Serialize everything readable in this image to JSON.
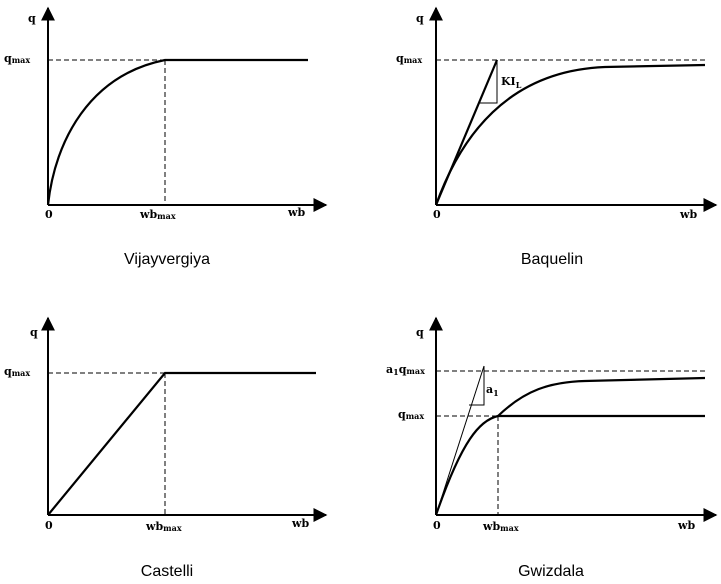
{
  "panels": [
    {
      "id": "vijayvergiya",
      "caption": "Vijayvergiya",
      "y_axis": "q",
      "x_axis": "wb",
      "origin": "0",
      "qmax": {
        "base": "q",
        "sub": "max"
      },
      "wbmax": {
        "base": "wb",
        "sub": "max"
      }
    },
    {
      "id": "baquelin",
      "caption": "Baquelin",
      "y_axis": "q",
      "x_axis": "wb",
      "origin": "0",
      "qmax": {
        "base": "q",
        "sub": "max"
      },
      "slope": {
        "base": "KI",
        "sub": "L"
      }
    },
    {
      "id": "castelli",
      "caption": "Castelli",
      "y_axis": "q",
      "x_axis": "wb",
      "origin": "0",
      "qmax": {
        "base": "q",
        "sub": "max"
      },
      "wbmax": {
        "base": "wb",
        "sub": "max"
      }
    },
    {
      "id": "gwizdala",
      "caption": "Gwizdala",
      "y_axis": "q",
      "x_axis": "wb",
      "origin": "0",
      "qmax": {
        "base": "q",
        "sub": "max"
      },
      "wbmax": {
        "base": "wb",
        "sub": "max"
      },
      "a1qmax": {
        "a": "a",
        "asub": "1",
        "base": "q",
        "sub": "max"
      },
      "slope": {
        "base": "a",
        "sub": "1"
      }
    }
  ]
}
